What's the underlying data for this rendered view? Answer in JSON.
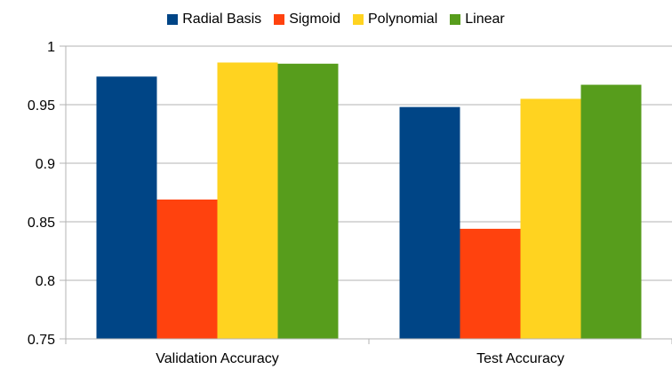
{
  "chart_data": {
    "type": "bar",
    "title": "",
    "xlabel": "",
    "ylabel": "",
    "categories": [
      "Validation Accuracy",
      "Test Accuracy"
    ],
    "series": [
      {
        "name": "Radial Basis",
        "color": "#004586",
        "values": [
          0.974,
          0.948
        ]
      },
      {
        "name": "Sigmoid",
        "color": "#ff420e",
        "values": [
          0.869,
          0.844
        ]
      },
      {
        "name": "Polynomial",
        "color": "#ffd320",
        "values": [
          0.986,
          0.955
        ]
      },
      {
        "name": "Linear",
        "color": "#579d1c",
        "values": [
          0.985,
          0.967
        ]
      }
    ],
    "ylim": [
      0.75,
      1
    ],
    "yticks": [
      0.75,
      0.8,
      0.85,
      0.9,
      0.95,
      1
    ],
    "ytick_labels": [
      "0.75",
      "0.8",
      "0.85",
      "0.9",
      "0.95",
      "1"
    ],
    "grid": "horizontal",
    "legend_position": "top-center"
  }
}
